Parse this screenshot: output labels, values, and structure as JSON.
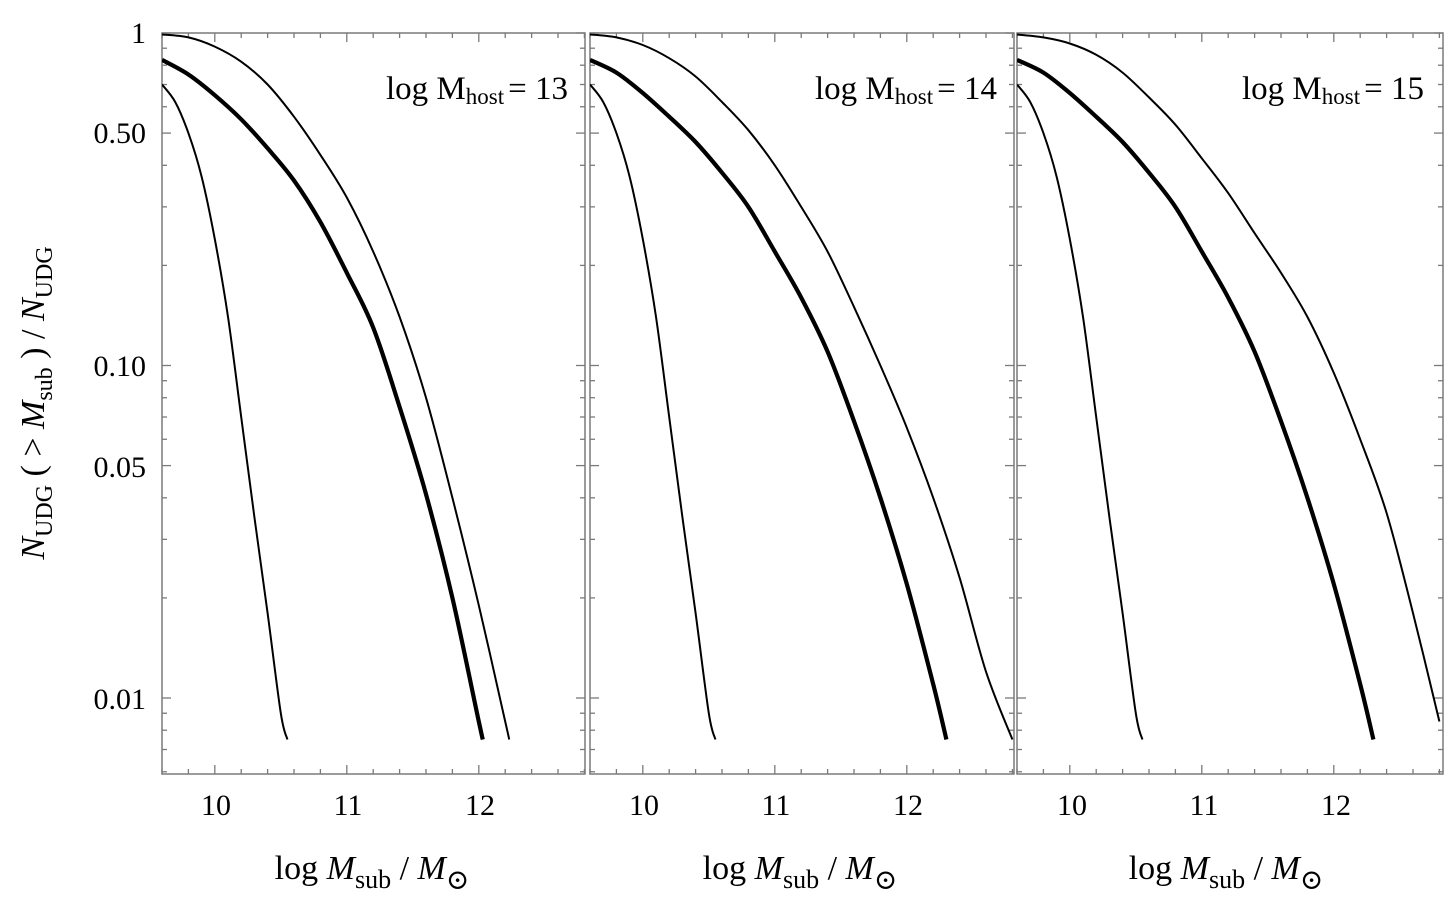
{
  "chart_data": {
    "type": "line",
    "panel_count": 3,
    "x_range": [
      9.6,
      12.8
    ],
    "y_range": [
      0.006,
      1
    ],
    "y_scale": "log",
    "x_ticks": [
      10,
      11,
      12
    ],
    "x_tick_labels": [
      "10",
      "11",
      "12"
    ],
    "y_ticks": [
      1,
      0.5,
      0.1,
      0.05,
      0.01
    ],
    "y_tick_labels": [
      "1",
      "0.50",
      "0.10",
      "0.05",
      "0.01"
    ],
    "ylabel": {
      "n1": "N",
      "n1_sub": "UDG",
      "paren_open": " ( > ",
      "m": "M",
      "m_sub": "sub",
      "paren_close": " ) / ",
      "n2": "N",
      "n2_sub": "UDG"
    },
    "xlabel": {
      "log": "log ",
      "m": "M",
      "m_sub": "sub",
      "slash": "  / ",
      "msun": "M",
      "sun_symbol": "⊙"
    },
    "panels": [
      {
        "label_prefix": "log M",
        "label_sub": "host",
        "label_value": "= 13",
        "series": [
          {
            "style": "thin",
            "x": [
              9.6,
              9.8,
              10.0,
              10.2,
              10.4,
              10.6,
              10.8,
              11.0,
              11.2,
              11.4,
              11.6,
              11.8,
              12.0,
              12.2,
              12.23
            ],
            "y": [
              0.99,
              0.97,
              0.91,
              0.82,
              0.7,
              0.56,
              0.43,
              0.32,
              0.22,
              0.14,
              0.08,
              0.04,
              0.019,
              0.0085,
              0.0075
            ]
          },
          {
            "style": "thick",
            "x": [
              9.6,
              9.8,
              10.0,
              10.2,
              10.4,
              10.6,
              10.8,
              11.0,
              11.2,
              11.4,
              11.6,
              11.8,
              12.0,
              12.03
            ],
            "y": [
              0.83,
              0.75,
              0.65,
              0.55,
              0.45,
              0.36,
              0.27,
              0.19,
              0.13,
              0.075,
              0.041,
              0.02,
              0.0085,
              0.0075
            ]
          },
          {
            "style": "thin",
            "x": [
              9.6,
              9.7,
              9.8,
              9.9,
              10.0,
              10.1,
              10.2,
              10.3,
              10.4,
              10.5,
              10.55
            ],
            "y": [
              0.7,
              0.62,
              0.5,
              0.37,
              0.24,
              0.14,
              0.07,
              0.035,
              0.018,
              0.009,
              0.0075
            ]
          }
        ]
      },
      {
        "label_prefix": "log M",
        "label_sub": "host",
        "label_value": "= 14",
        "series": [
          {
            "style": "thin",
            "x": [
              9.6,
              9.8,
              10.0,
              10.2,
              10.4,
              10.6,
              10.8,
              11.0,
              11.2,
              11.4,
              11.6,
              11.8,
              12.0,
              12.2,
              12.4,
              12.6,
              12.8
            ],
            "y": [
              0.99,
              0.97,
              0.92,
              0.84,
              0.74,
              0.62,
              0.51,
              0.4,
              0.3,
              0.22,
              0.15,
              0.1,
              0.065,
              0.04,
              0.023,
              0.012,
              0.0075
            ]
          },
          {
            "style": "thick",
            "x": [
              9.6,
              9.8,
              10.0,
              10.2,
              10.4,
              10.6,
              10.8,
              11.0,
              11.2,
              11.4,
              11.6,
              11.8,
              12.0,
              12.2,
              12.3
            ],
            "y": [
              0.83,
              0.76,
              0.66,
              0.56,
              0.47,
              0.38,
              0.3,
              0.22,
              0.16,
              0.11,
              0.068,
              0.04,
              0.022,
              0.011,
              0.0075
            ]
          },
          {
            "style": "thin",
            "x": [
              9.6,
              9.7,
              9.8,
              9.9,
              10.0,
              10.1,
              10.2,
              10.3,
              10.4,
              10.5,
              10.55
            ],
            "y": [
              0.7,
              0.62,
              0.5,
              0.37,
              0.24,
              0.14,
              0.07,
              0.035,
              0.018,
              0.009,
              0.0075
            ]
          }
        ]
      },
      {
        "label_prefix": "log M",
        "label_sub": "host",
        "label_value": "= 15",
        "series": [
          {
            "style": "thin",
            "x": [
              9.6,
              9.8,
              10.0,
              10.2,
              10.4,
              10.6,
              10.8,
              11.0,
              11.2,
              11.4,
              11.6,
              11.8,
              12.0,
              12.2,
              12.4,
              12.6,
              12.8
            ],
            "y": [
              0.99,
              0.97,
              0.93,
              0.86,
              0.76,
              0.64,
              0.53,
              0.42,
              0.33,
              0.25,
              0.19,
              0.14,
              0.095,
              0.06,
              0.036,
              0.018,
              0.0085
            ]
          },
          {
            "style": "thick",
            "x": [
              9.6,
              9.8,
              10.0,
              10.2,
              10.4,
              10.6,
              10.8,
              11.0,
              11.2,
              11.4,
              11.6,
              11.8,
              12.0,
              12.2,
              12.3
            ],
            "y": [
              0.83,
              0.76,
              0.66,
              0.56,
              0.47,
              0.38,
              0.3,
              0.22,
              0.16,
              0.11,
              0.068,
              0.04,
              0.022,
              0.011,
              0.0075
            ]
          },
          {
            "style": "thin",
            "x": [
              9.6,
              9.7,
              9.8,
              9.9,
              10.0,
              10.1,
              10.2,
              10.3,
              10.4,
              10.5,
              10.55
            ],
            "y": [
              0.7,
              0.62,
              0.5,
              0.37,
              0.24,
              0.14,
              0.07,
              0.035,
              0.018,
              0.009,
              0.0075
            ]
          }
        ]
      }
    ]
  }
}
